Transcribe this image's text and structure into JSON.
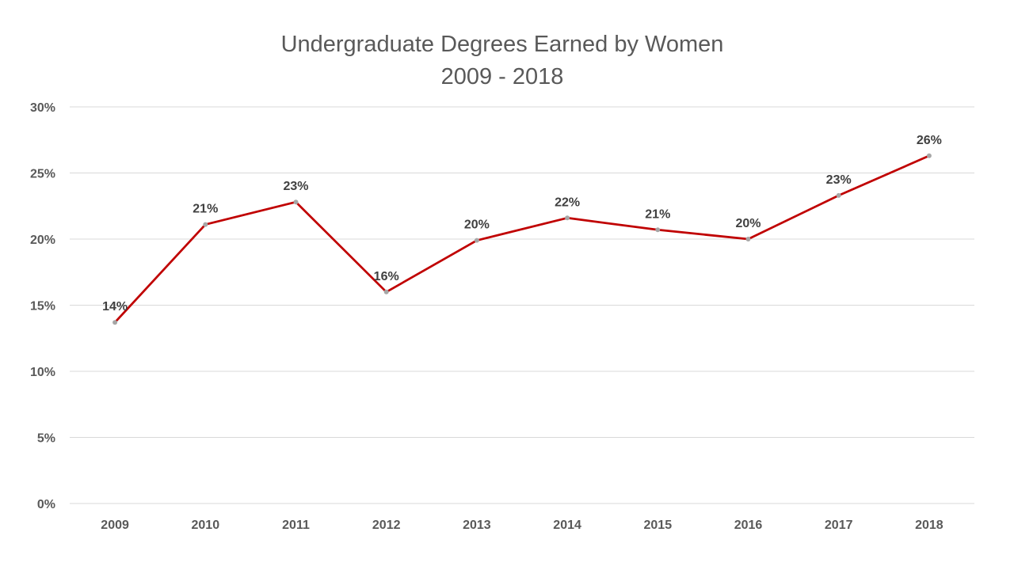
{
  "chart_data": {
    "type": "line",
    "title": "Undergraduate Degrees Earned by Women",
    "subtitle": "2009 - 2018",
    "xlabel": "",
    "ylabel": "",
    "categories": [
      "2009",
      "2010",
      "2011",
      "2012",
      "2013",
      "2014",
      "2015",
      "2016",
      "2017",
      "2018"
    ],
    "series": [
      {
        "values": [
          13.7,
          21.1,
          22.8,
          16.0,
          19.9,
          21.6,
          20.7,
          20.0,
          23.3,
          26.3
        ],
        "data_labels": [
          "14%",
          "21%",
          "23%",
          "16%",
          "20%",
          "22%",
          "21%",
          "20%",
          "23%",
          "26%"
        ],
        "color": "#c00000",
        "marker_color": "#a6a6a6"
      }
    ],
    "ylim": [
      0,
      30
    ],
    "y_ticks": [
      0,
      5,
      10,
      15,
      20,
      25,
      30
    ],
    "y_tick_labels": [
      "0%",
      "5%",
      "10%",
      "15%",
      "20%",
      "25%",
      "30%"
    ],
    "grid": true,
    "legend": "none"
  }
}
